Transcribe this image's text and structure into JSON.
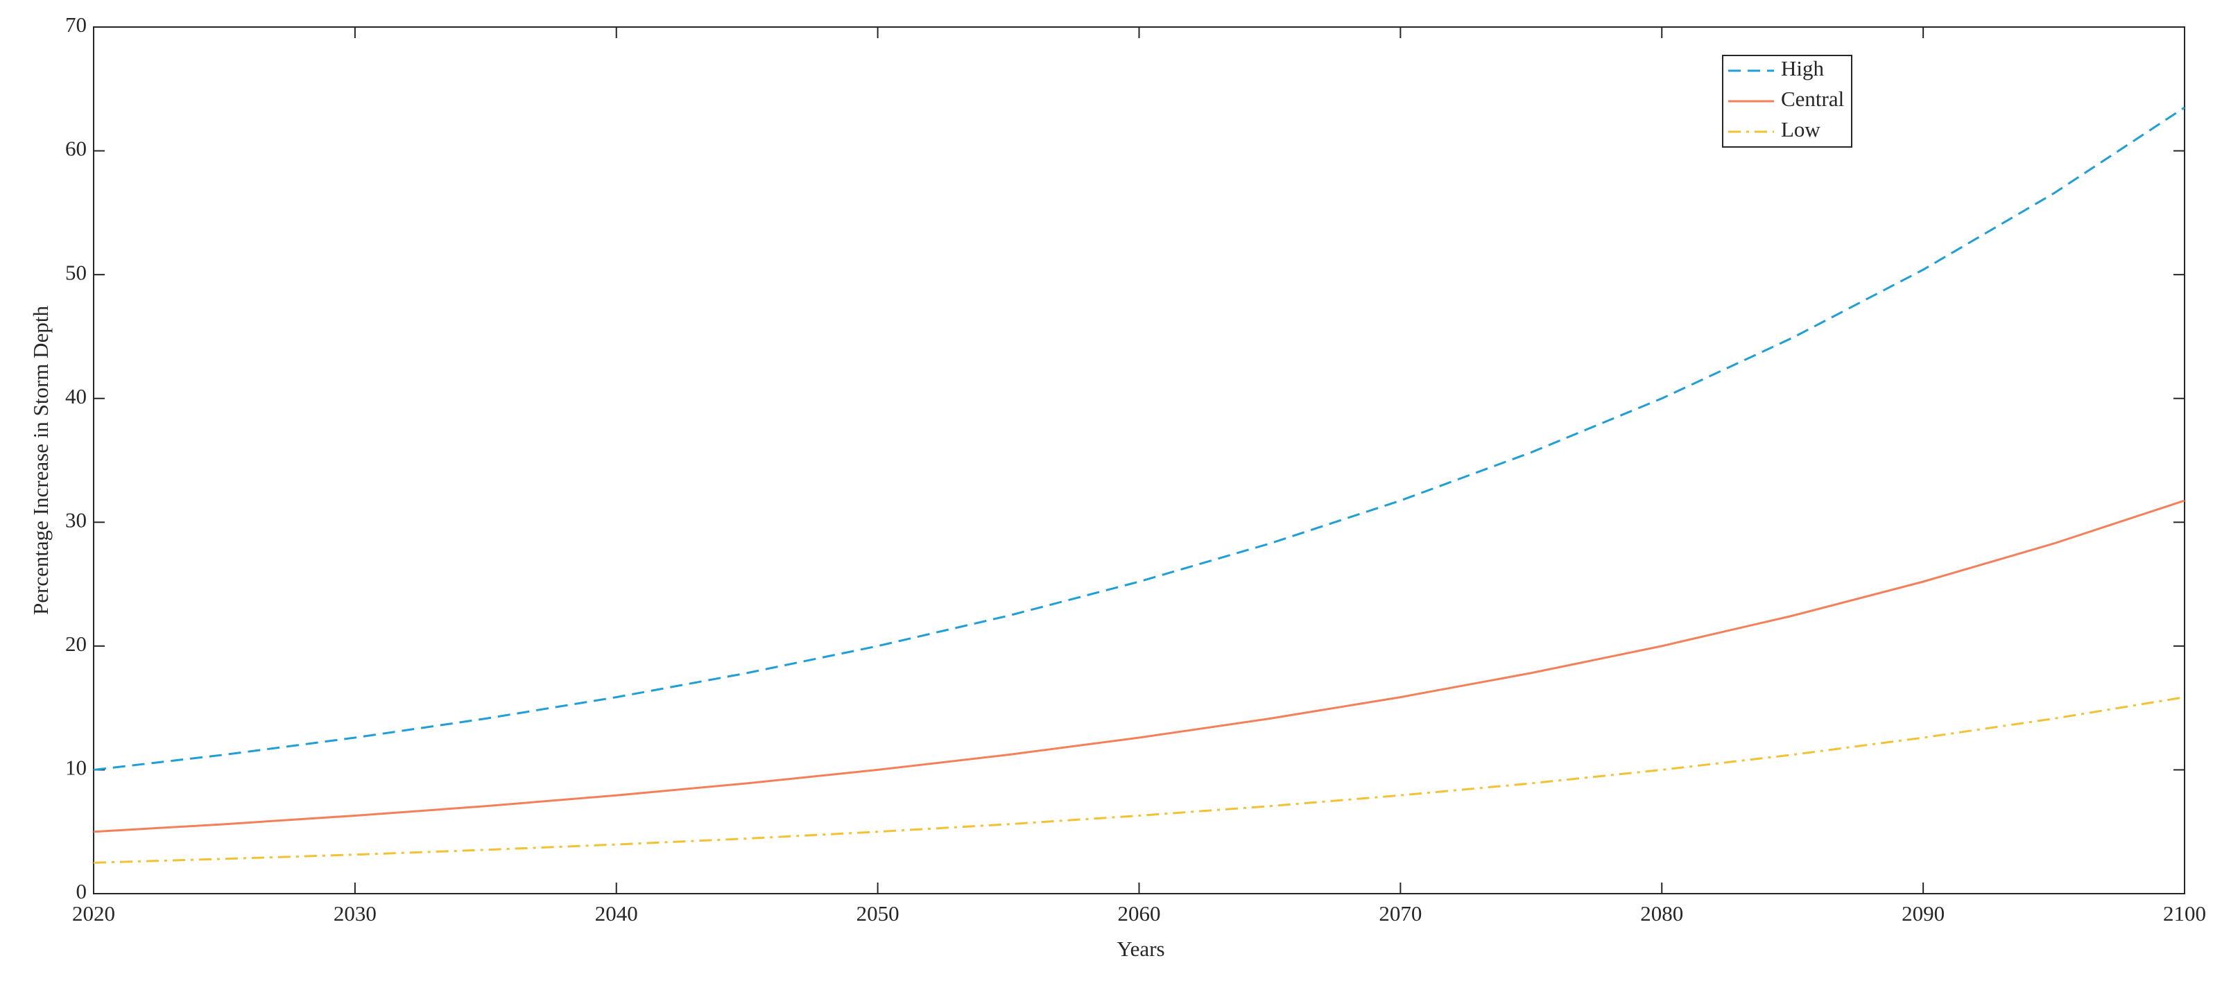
{
  "chart_data": {
    "type": "line",
    "xlabel": "Years",
    "ylabel": "Percentage Increase in Storm Depth",
    "x": [
      2020,
      2025,
      2030,
      2035,
      2040,
      2045,
      2050,
      2055,
      2060,
      2065,
      2070,
      2075,
      2080,
      2085,
      2090,
      2095,
      2100
    ],
    "series": [
      {
        "name": "High",
        "color": "#1f9fd8",
        "dash": "dashed",
        "values": [
          10,
          11.22,
          12.6,
          14.14,
          15.87,
          17.82,
          20,
          22.45,
          25.2,
          28.28,
          31.75,
          35.64,
          40,
          44.9,
          50.4,
          56.57,
          63.5
        ]
      },
      {
        "name": "Central",
        "color": "#f4805a",
        "dash": "solid",
        "values": [
          5,
          5.61,
          6.3,
          7.07,
          7.94,
          8.91,
          10,
          11.22,
          12.6,
          14.14,
          15.87,
          17.82,
          20,
          22.45,
          25.2,
          28.28,
          31.75
        ]
      },
      {
        "name": "Low",
        "color": "#f2c232",
        "dash": "dashdot",
        "values": [
          2.5,
          2.81,
          3.15,
          3.54,
          3.97,
          4.45,
          5,
          5.61,
          6.3,
          7.07,
          7.94,
          8.91,
          10,
          11.22,
          12.6,
          14.14,
          15.87
        ]
      }
    ],
    "xlim": [
      2020,
      2100
    ],
    "xticks": [
      2020,
      2030,
      2040,
      2050,
      2060,
      2070,
      2080,
      2090,
      2100
    ],
    "ylim": [
      0,
      70
    ],
    "yticks": [
      0,
      10,
      20,
      30,
      40,
      50,
      60,
      70
    ],
    "grid": false,
    "legend": "upper right"
  }
}
